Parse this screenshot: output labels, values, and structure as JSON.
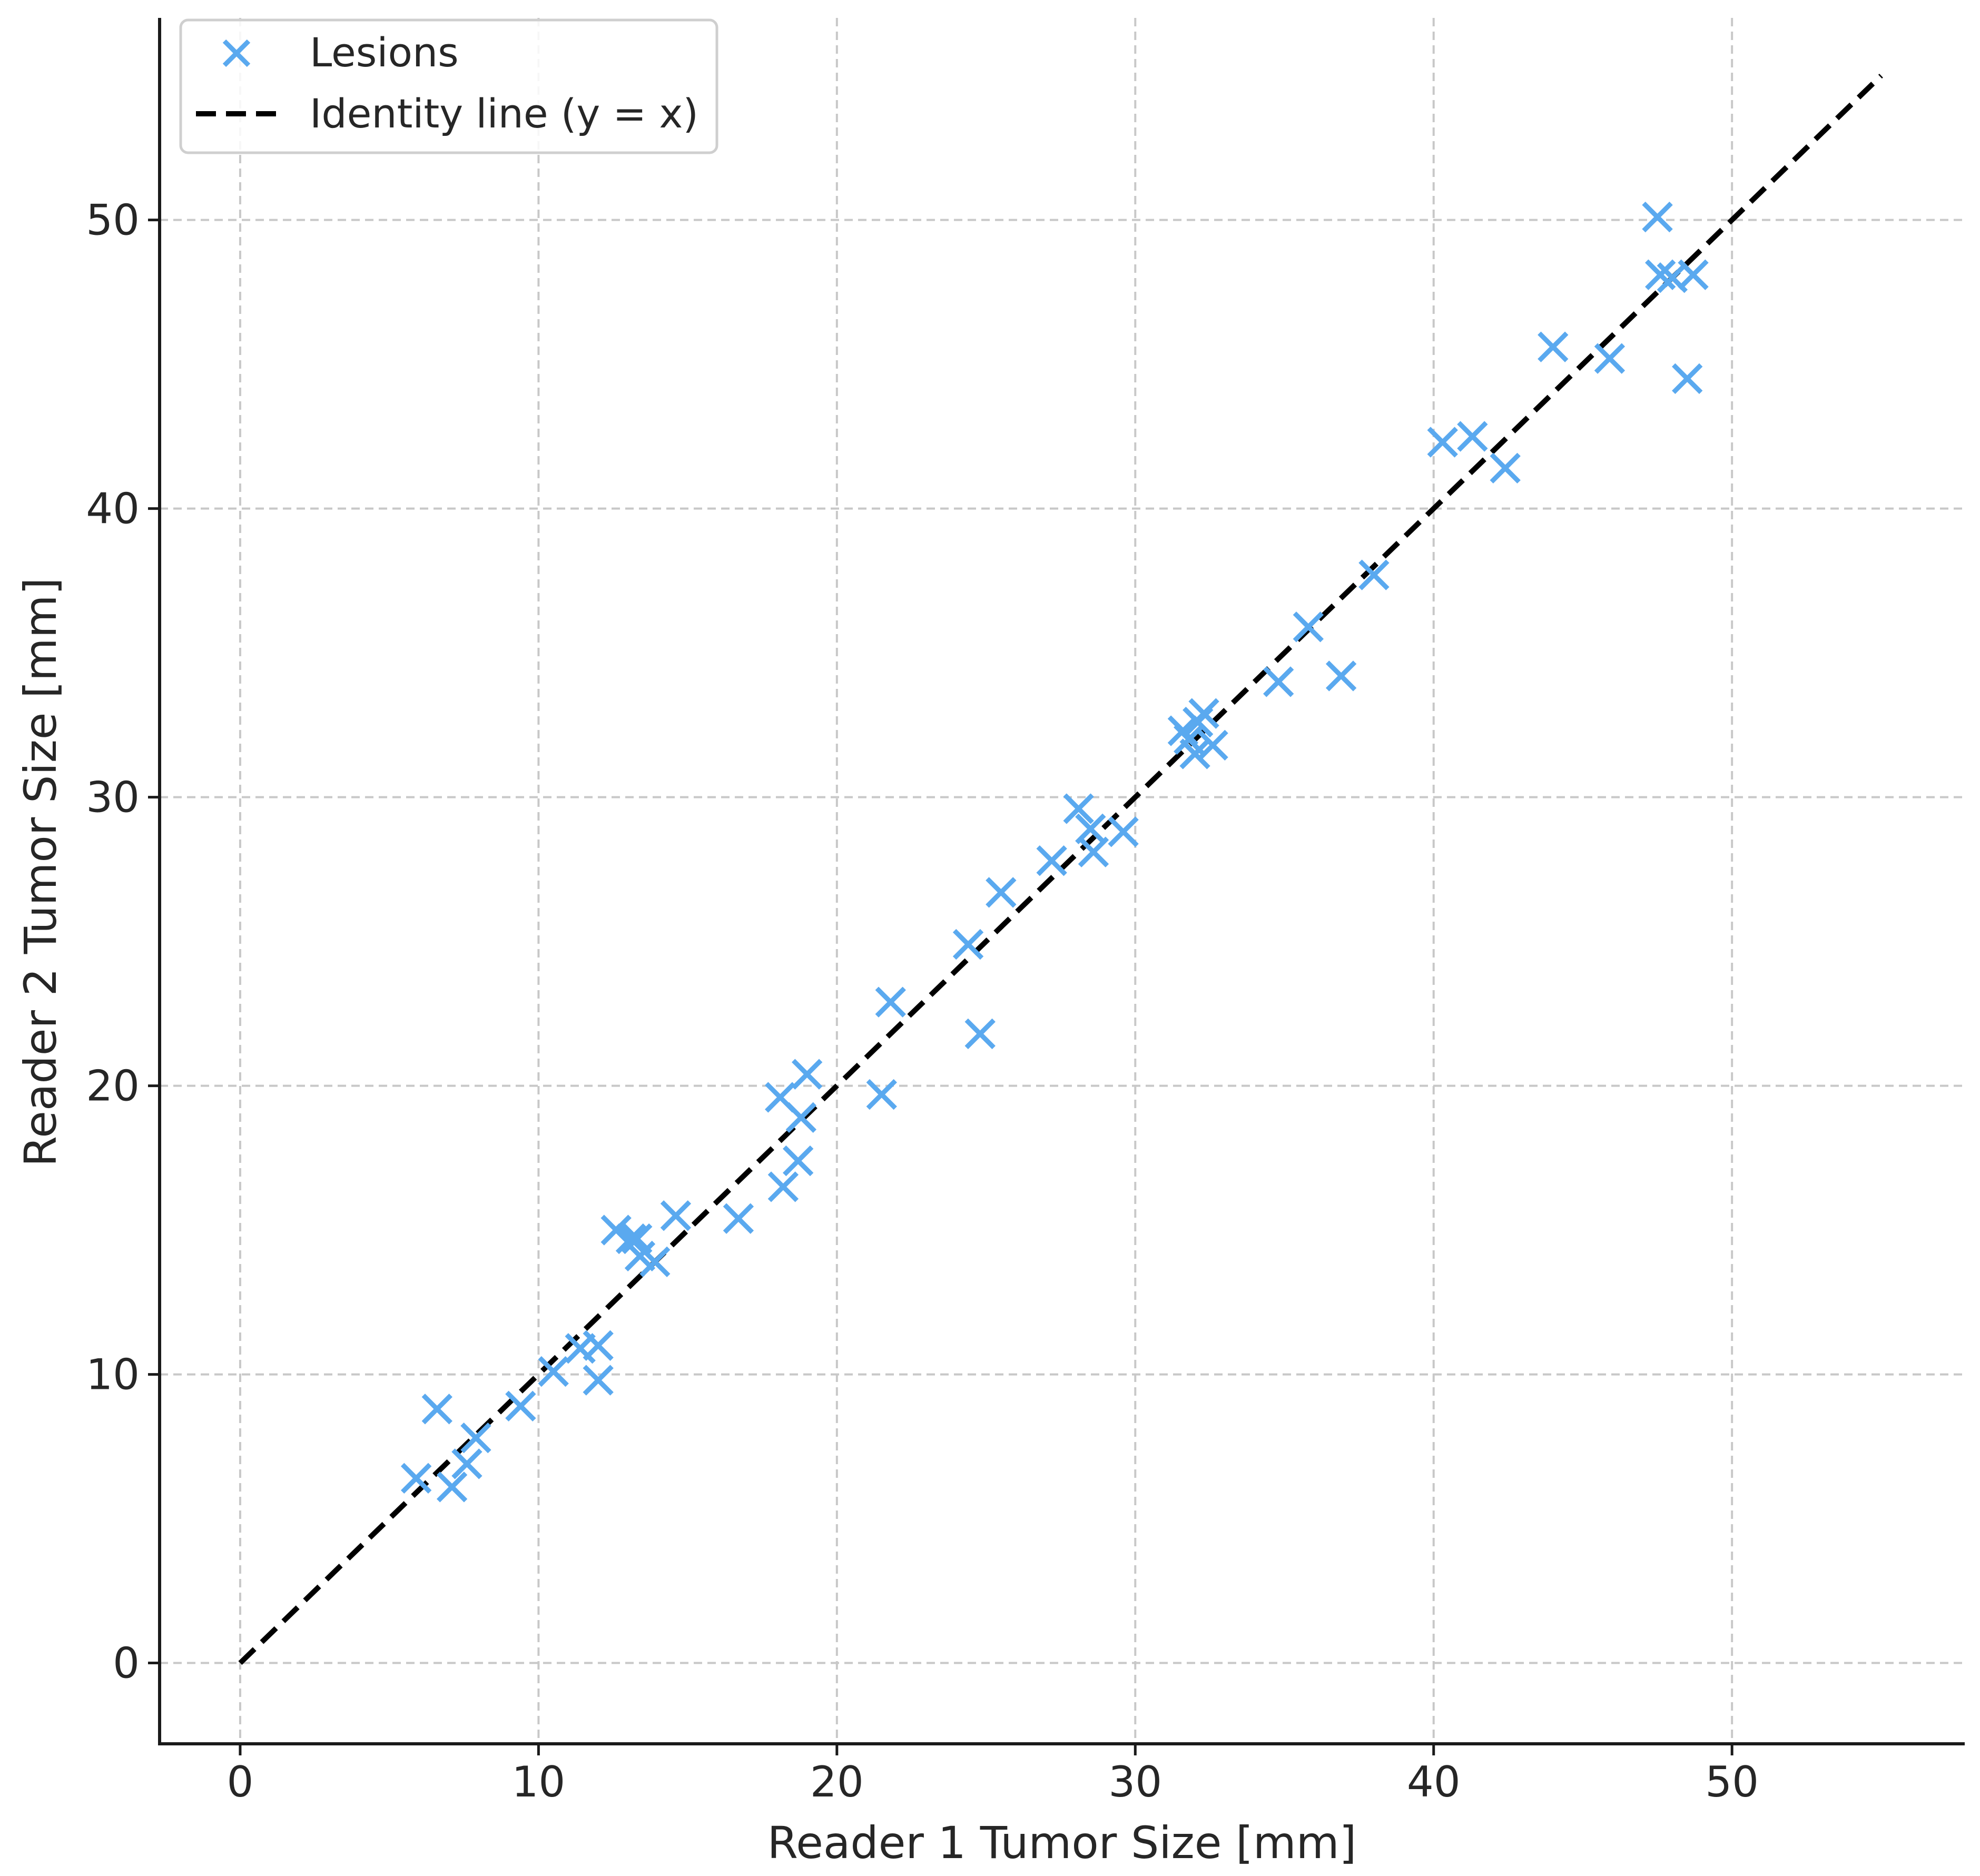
{
  "chart_data": {
    "type": "scatter",
    "xlabel": "Reader 1 Tumor Size [mm]",
    "ylabel": "Reader 2 Tumor Size [mm]",
    "xlim": [
      -2.7,
      57.8
    ],
    "ylim": [
      -2.8,
      57.0
    ],
    "xticks": [
      0,
      10,
      20,
      30,
      40,
      50
    ],
    "yticks": [
      0,
      10,
      20,
      30,
      40,
      50
    ],
    "grid": true,
    "legend_position": "top-left",
    "series": [
      {
        "name": "Lesions",
        "kind": "scatter",
        "marker": "x",
        "color": "#5aa9ef",
        "points": [
          [
            5.9,
            6.4
          ],
          [
            7.1,
            6.1
          ],
          [
            6.6,
            8.8
          ],
          [
            7.6,
            6.9
          ],
          [
            7.9,
            7.8
          ],
          [
            9.4,
            8.9
          ],
          [
            10.5,
            10.1
          ],
          [
            11.4,
            10.9
          ],
          [
            12.0,
            9.8
          ],
          [
            12.0,
            11.0
          ],
          [
            12.6,
            15.0
          ],
          [
            13.1,
            14.7
          ],
          [
            13.3,
            14.7
          ],
          [
            13.4,
            14.1
          ],
          [
            13.9,
            13.9
          ],
          [
            14.6,
            15.5
          ],
          [
            16.7,
            15.4
          ],
          [
            18.1,
            19.6
          ],
          [
            18.2,
            16.5
          ],
          [
            18.7,
            17.4
          ],
          [
            18.8,
            18.9
          ],
          [
            19.0,
            20.4
          ],
          [
            21.5,
            19.7
          ],
          [
            21.8,
            22.9
          ],
          [
            24.4,
            24.9
          ],
          [
            24.8,
            21.8
          ],
          [
            25.5,
            26.7
          ],
          [
            27.2,
            27.8
          ],
          [
            28.1,
            29.6
          ],
          [
            28.5,
            28.9
          ],
          [
            28.6,
            28.1
          ],
          [
            29.6,
            28.8
          ],
          [
            31.6,
            32.3
          ],
          [
            31.8,
            32.0
          ],
          [
            32.0,
            31.5
          ],
          [
            32.1,
            32.6
          ],
          [
            32.3,
            32.9
          ],
          [
            32.6,
            31.8
          ],
          [
            34.8,
            34.0
          ],
          [
            35.8,
            35.9
          ],
          [
            36.9,
            34.2
          ],
          [
            38.0,
            37.7
          ],
          [
            40.3,
            42.3
          ],
          [
            41.3,
            42.5
          ],
          [
            42.4,
            41.4
          ],
          [
            44.0,
            45.6
          ],
          [
            45.9,
            45.2
          ],
          [
            47.5,
            50.1
          ],
          [
            47.6,
            48.1
          ],
          [
            48.0,
            48.0
          ],
          [
            48.5,
            44.5
          ],
          [
            48.7,
            48.1
          ]
        ]
      },
      {
        "name": "Identity line (y = x)",
        "kind": "line",
        "style": "dashed",
        "color": "#000000",
        "x": [
          0,
          55
        ],
        "y": [
          0,
          55
        ]
      }
    ]
  }
}
